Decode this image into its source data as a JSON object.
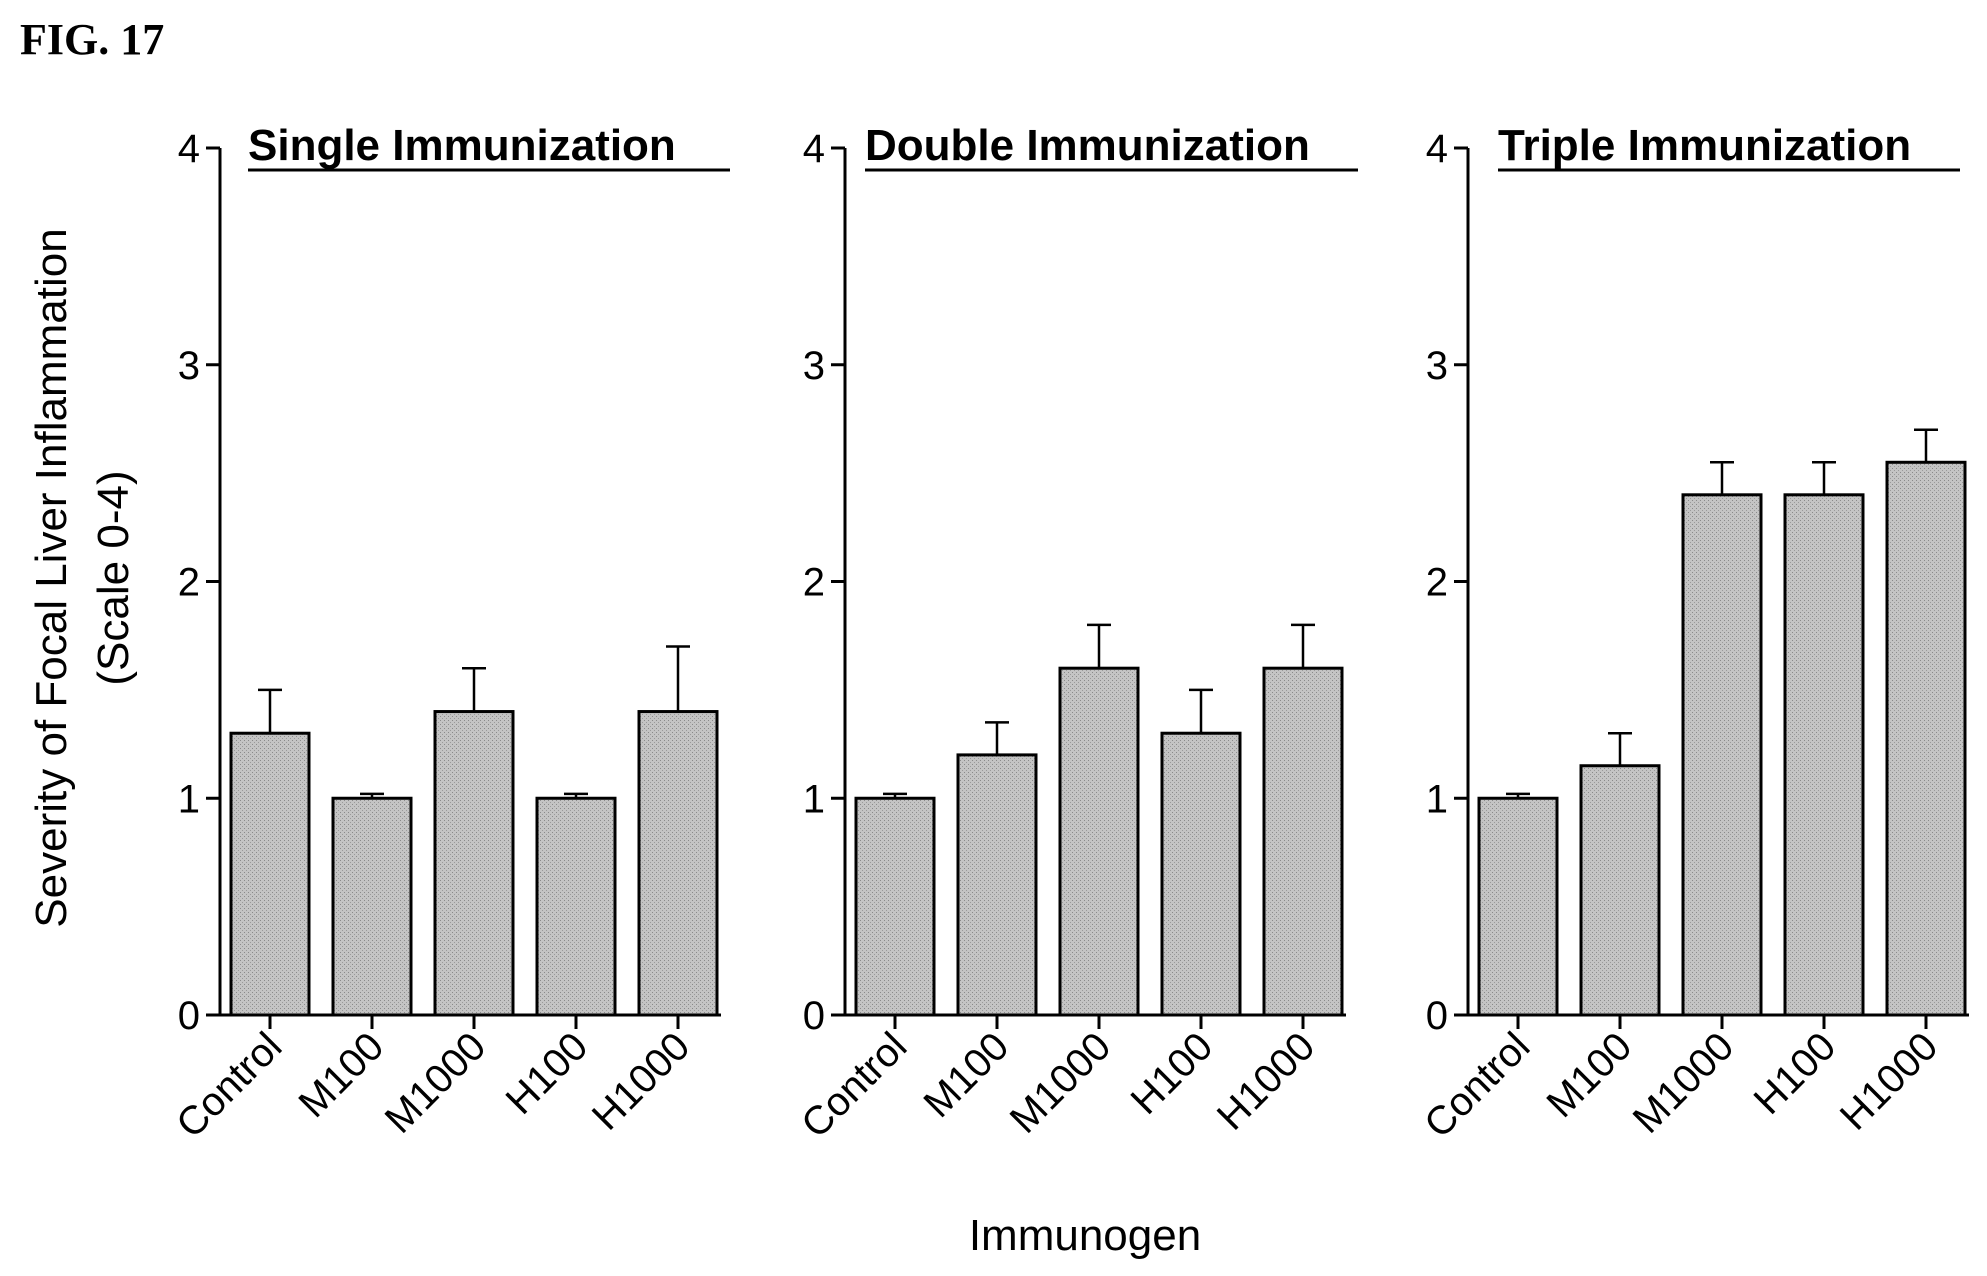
{
  "figure_label": "FIG. 17",
  "shared_ylabel_line1": "Severity of Focal Liver Inflammation",
  "shared_ylabel_line2": "(Scale 0-4)",
  "shared_xlabel": "Immunogen",
  "colors": {
    "bar_fill": "#bdbdbd",
    "bar_stroke": "#000000",
    "axis": "#000000"
  },
  "chart_data": [
    {
      "type": "bar",
      "title": "Single Immunization",
      "categories": [
        "Control",
        "M100",
        "M1000",
        "H100",
        "H1000"
      ],
      "values": [
        1.3,
        1.0,
        1.4,
        1.0,
        1.4
      ],
      "error_upper": [
        1.5,
        1.02,
        1.6,
        1.02,
        1.7
      ],
      "ylim": [
        0,
        4
      ],
      "yticks": [
        0,
        1,
        2,
        3,
        4
      ]
    },
    {
      "type": "bar",
      "title": "Double Immunization",
      "categories": [
        "Control",
        "M100",
        "M1000",
        "H100",
        "H1000"
      ],
      "values": [
        1.0,
        1.2,
        1.6,
        1.3,
        1.6
      ],
      "error_upper": [
        1.02,
        1.35,
        1.8,
        1.5,
        1.8
      ],
      "ylim": [
        0,
        4
      ],
      "yticks": [
        0,
        1,
        2,
        3,
        4
      ]
    },
    {
      "type": "bar",
      "title": "Triple Immunization",
      "categories": [
        "Control",
        "M100",
        "M1000",
        "H100",
        "H1000"
      ],
      "values": [
        1.0,
        1.15,
        2.4,
        2.4,
        2.55
      ],
      "error_upper": [
        1.02,
        1.3,
        2.55,
        2.55,
        2.7
      ],
      "ylim": [
        0,
        4
      ],
      "yticks": [
        0,
        1,
        2,
        3,
        4
      ]
    }
  ]
}
